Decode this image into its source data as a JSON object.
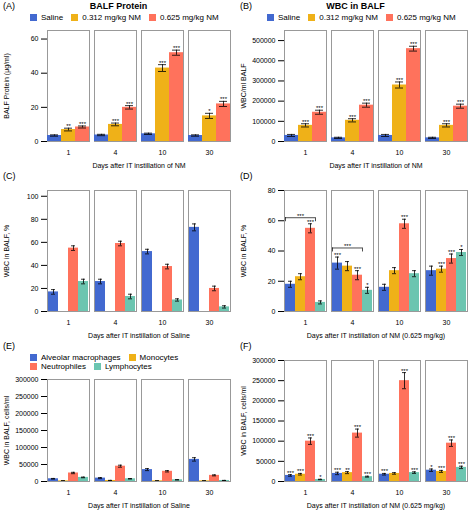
{
  "chart_data": [
    {
      "type": "bar",
      "panel_label": "(A)",
      "title": "BALF Protein",
      "xlabel": "Days after IT instillation of NM",
      "ylabel": "BALF Protein (μg/ml)",
      "categories": [
        "1",
        "4",
        "10",
        "30"
      ],
      "series": [
        {
          "name": "Saline",
          "values": [
            3.5,
            3.8,
            4.5,
            3.5
          ],
          "errors": [
            0.4,
            0.4,
            0.4,
            0.4
          ]
        },
        {
          "name": "0.312 mg/kg NM",
          "values": [
            7.0,
            10.0,
            43.0,
            15.0
          ],
          "errors": [
            0.8,
            0.8,
            2.0,
            1.5
          ],
          "stars": [
            "**",
            "***",
            "***",
            "*"
          ]
        },
        {
          "name": "0.625 mg/kg NM",
          "values": [
            8.5,
            20.0,
            52.0,
            22.0
          ],
          "errors": [
            0.6,
            1.0,
            1.5,
            1.5
          ],
          "stars": [
            "***",
            "***",
            "***",
            "***"
          ]
        }
      ],
      "ylim": [
        0,
        65
      ],
      "yticks": [
        0,
        20,
        40,
        60
      ],
      "grid": false,
      "legend": "top"
    },
    {
      "type": "bar",
      "panel_label": "(B)",
      "title": "WBC in BALF",
      "xlabel": "Days after IT instillation of NM",
      "ylabel": "WBC/ml BALF",
      "categories": [
        "1",
        "4",
        "10",
        "30"
      ],
      "series": [
        {
          "name": "Saline",
          "values": [
            30000,
            18000,
            30000,
            18000
          ],
          "errors": [
            5000,
            3000,
            5000,
            3000
          ]
        },
        {
          "name": "0.312 mg/kg NM",
          "values": [
            80000,
            105000,
            280000,
            80000
          ],
          "errors": [
            8000,
            8000,
            15000,
            8000
          ],
          "stars": [
            "***",
            "***",
            "***",
            "***"
          ]
        },
        {
          "name": "0.625 mg/kg NM",
          "values": [
            145000,
            180000,
            460000,
            175000
          ],
          "errors": [
            10000,
            10000,
            12000,
            10000
          ],
          "stars": [
            "***",
            "***",
            "***",
            "***"
          ]
        }
      ],
      "ylim": [
        0,
        550000
      ],
      "yticks": [
        0,
        100000,
        200000,
        300000,
        400000,
        500000
      ],
      "grid": false,
      "legend": "top"
    },
    {
      "type": "bar",
      "panel_label": "(C)",
      "xlabel": "Days after IT instillation of Saline",
      "ylabel": "WBC in BALF, %",
      "categories": [
        "1",
        "4",
        "10",
        "30"
      ],
      "series": [
        {
          "values": [
            17,
            26,
            52,
            73
          ],
          "errors": [
            2,
            2,
            2,
            3
          ]
        },
        {
          "values": [
            0,
            0,
            0,
            0
          ],
          "errors": [
            0,
            0,
            0,
            0
          ]
        },
        {
          "values": [
            55,
            59,
            39,
            20
          ],
          "errors": [
            2,
            2,
            2,
            2
          ]
        },
        {
          "values": [
            26,
            13,
            10,
            4
          ],
          "errors": [
            2,
            2,
            1,
            1
          ]
        }
      ],
      "ylim": [
        0,
        105
      ],
      "yticks": [
        0,
        20,
        40,
        60,
        80,
        100
      ],
      "grid": false
    },
    {
      "type": "bar",
      "panel_label": "(D)",
      "xlabel": "Days after IT instillation of NM (0.625 mg/kg)",
      "ylabel": "WBC in BALF, %",
      "categories": [
        "1",
        "4",
        "10",
        "30"
      ],
      "series": [
        {
          "values": [
            18,
            32,
            16,
            27
          ],
          "errors": [
            2,
            4,
            2,
            3
          ],
          "stars": [
            null,
            "***",
            null,
            null
          ]
        },
        {
          "values": [
            23,
            30,
            27,
            28
          ],
          "errors": [
            2,
            3,
            2,
            2
          ],
          "stars": [
            null,
            null,
            null,
            "***"
          ]
        },
        {
          "values": [
            55,
            24,
            58,
            35
          ],
          "errors": [
            3,
            3,
            3,
            3
          ],
          "stars": [
            "***",
            "***",
            "***",
            "***"
          ]
        },
        {
          "values": [
            6,
            14,
            25,
            39
          ],
          "errors": [
            1,
            2,
            2,
            2
          ],
          "stars": [
            null,
            "*",
            null,
            "*"
          ]
        }
      ],
      "brackets": [
        {
          "category": "1",
          "from": 0,
          "to": 2,
          "y": 62,
          "text": "***"
        },
        {
          "category": "4",
          "from": 0,
          "to": 2,
          "y": 42,
          "text": "***"
        }
      ],
      "ylim": [
        0,
        80
      ],
      "yticks": [
        0,
        20,
        40,
        60,
        80
      ],
      "grid": false
    },
    {
      "type": "bar",
      "panel_label": "(E)",
      "xlabel": "Days after IT instillation of Saline",
      "ylabel": "WBC in BALF, cells/ml",
      "categories": [
        "1",
        "4",
        "10",
        "30"
      ],
      "series": [
        {
          "name": "Alveolar macrophages",
          "values": [
            8000,
            10000,
            35000,
            65000
          ],
          "errors": [
            1000,
            1500,
            3000,
            5000
          ]
        },
        {
          "name": "Monocytes",
          "values": [
            2000,
            3000,
            2000,
            2000
          ],
          "errors": [
            300,
            400,
            300,
            300
          ]
        },
        {
          "name": "Neutrophiles",
          "values": [
            25000,
            45000,
            30000,
            18000
          ],
          "errors": [
            2000,
            3000,
            2000,
            1500
          ]
        },
        {
          "name": "Lymphocytes",
          "values": [
            12000,
            8000,
            5000,
            3000
          ],
          "errors": [
            1000,
            800,
            500,
            300
          ]
        }
      ],
      "ylim": [
        0,
        300000
      ],
      "yticks": [
        0,
        50000,
        100000,
        150000,
        200000,
        250000,
        300000
      ],
      "grid": false,
      "legend": "top"
    },
    {
      "type": "bar",
      "panel_label": "(F)",
      "xlabel": "Days after IT instillation of NM (0.625 mg/kg)",
      "ylabel": "WBC in BALF, cells/ml",
      "categories": [
        "1",
        "4",
        "10",
        "30"
      ],
      "series": [
        {
          "values": [
            15000,
            20000,
            18000,
            28000
          ],
          "errors": [
            2000,
            3000,
            2000,
            3000
          ],
          "stars": [
            "***",
            "***",
            "***",
            "*"
          ]
        },
        {
          "values": [
            18000,
            22000,
            20000,
            25000
          ],
          "errors": [
            2000,
            2500,
            2000,
            2500
          ],
          "stars": [
            "***",
            "**",
            null,
            "***"
          ]
        },
        {
          "values": [
            100000,
            120000,
            250000,
            95000
          ],
          "errors": [
            8000,
            10000,
            20000,
            8000
          ],
          "stars": [
            "***",
            "***",
            "***",
            "***"
          ]
        },
        {
          "values": [
            5000,
            12000,
            22000,
            35000
          ],
          "errors": [
            600,
            1200,
            2000,
            3000
          ],
          "stars": [
            "*",
            "***",
            "***",
            "***"
          ]
        }
      ],
      "ylim": [
        0,
        300000
      ],
      "yticks": [
        0,
        50000,
        100000,
        150000,
        200000,
        250000,
        300000
      ],
      "grid": false
    }
  ]
}
